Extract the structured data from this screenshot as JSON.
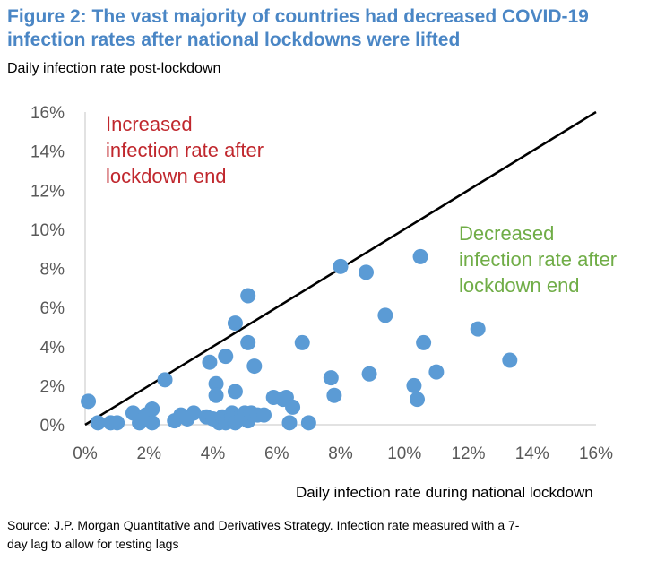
{
  "title_lines": [
    "Figure 2: The vast majority of countries had decreased COVID-19",
    "infection rates after national lockdowns were lifted"
  ],
  "source_lines": [
    "Source: J.P. Morgan Quantitative and Derivatives Strategy. Infection rate measured with a 7-",
    "day lag to allow for testing lags"
  ],
  "colors": {
    "title": "#4a86c5",
    "points": "#5b9bd5",
    "increased": "#c0272d",
    "decreased": "#70ad47",
    "line": "#000000",
    "axis": "#d9d9d9"
  },
  "chart_data": {
    "type": "scatter",
    "xlabel": "Daily infection rate during national lockdown",
    "ylabel": "Daily infection rate post-lockdown",
    "xlim": [
      0,
      16
    ],
    "ylim": [
      0,
      16
    ],
    "x_ticks": [
      "0%",
      "2%",
      "4%",
      "6%",
      "8%",
      "10%",
      "12%",
      "14%",
      "16%"
    ],
    "y_ticks": [
      "0%",
      "2%",
      "4%",
      "6%",
      "8%",
      "10%",
      "12%",
      "14%",
      "16%"
    ],
    "grid": false,
    "reference_line": "y = x",
    "annotations": [
      {
        "lines": [
          "Increased",
          "infection rate after",
          "lockdown end"
        ],
        "color_key": "increased"
      },
      {
        "lines": [
          "Decreased",
          "infection rate after",
          "lockdown end"
        ],
        "color_key": "decreased"
      }
    ],
    "points": [
      [
        0.1,
        1.2
      ],
      [
        0.4,
        0.1
      ],
      [
        0.8,
        0.1
      ],
      [
        1.0,
        0.1
      ],
      [
        1.5,
        0.6
      ],
      [
        1.7,
        0.1
      ],
      [
        1.9,
        0.5
      ],
      [
        2.1,
        0.1
      ],
      [
        2.1,
        0.8
      ],
      [
        2.5,
        2.3
      ],
      [
        2.8,
        0.2
      ],
      [
        3.0,
        0.5
      ],
      [
        3.2,
        0.3
      ],
      [
        3.4,
        0.6
      ],
      [
        3.8,
        0.4
      ],
      [
        3.9,
        3.2
      ],
      [
        4.0,
        0.3
      ],
      [
        4.1,
        2.1
      ],
      [
        4.1,
        1.5
      ],
      [
        4.2,
        0.1
      ],
      [
        4.3,
        0.4
      ],
      [
        4.4,
        3.5
      ],
      [
        4.4,
        0.1
      ],
      [
        4.6,
        0.6
      ],
      [
        4.6,
        0.3
      ],
      [
        4.7,
        0.1
      ],
      [
        4.7,
        5.2
      ],
      [
        4.7,
        1.7
      ],
      [
        4.9,
        0.4
      ],
      [
        5.0,
        0.6
      ],
      [
        5.1,
        6.6
      ],
      [
        5.1,
        4.2
      ],
      [
        5.1,
        0.2
      ],
      [
        5.2,
        0.6
      ],
      [
        5.3,
        3.0
      ],
      [
        5.4,
        0.5
      ],
      [
        5.6,
        0.5
      ],
      [
        5.9,
        1.4
      ],
      [
        6.2,
        1.3
      ],
      [
        6.3,
        1.4
      ],
      [
        6.4,
        0.1
      ],
      [
        6.5,
        0.9
      ],
      [
        6.8,
        4.2
      ],
      [
        7.0,
        0.1
      ],
      [
        7.7,
        2.4
      ],
      [
        7.8,
        1.5
      ],
      [
        8.0,
        8.1
      ],
      [
        8.8,
        7.8
      ],
      [
        8.9,
        2.6
      ],
      [
        9.4,
        5.6
      ],
      [
        10.3,
        2.0
      ],
      [
        10.4,
        1.3
      ],
      [
        10.5,
        8.6
      ],
      [
        10.6,
        4.2
      ],
      [
        11.0,
        2.7
      ],
      [
        12.3,
        4.9
      ],
      [
        13.3,
        3.3
      ]
    ]
  }
}
